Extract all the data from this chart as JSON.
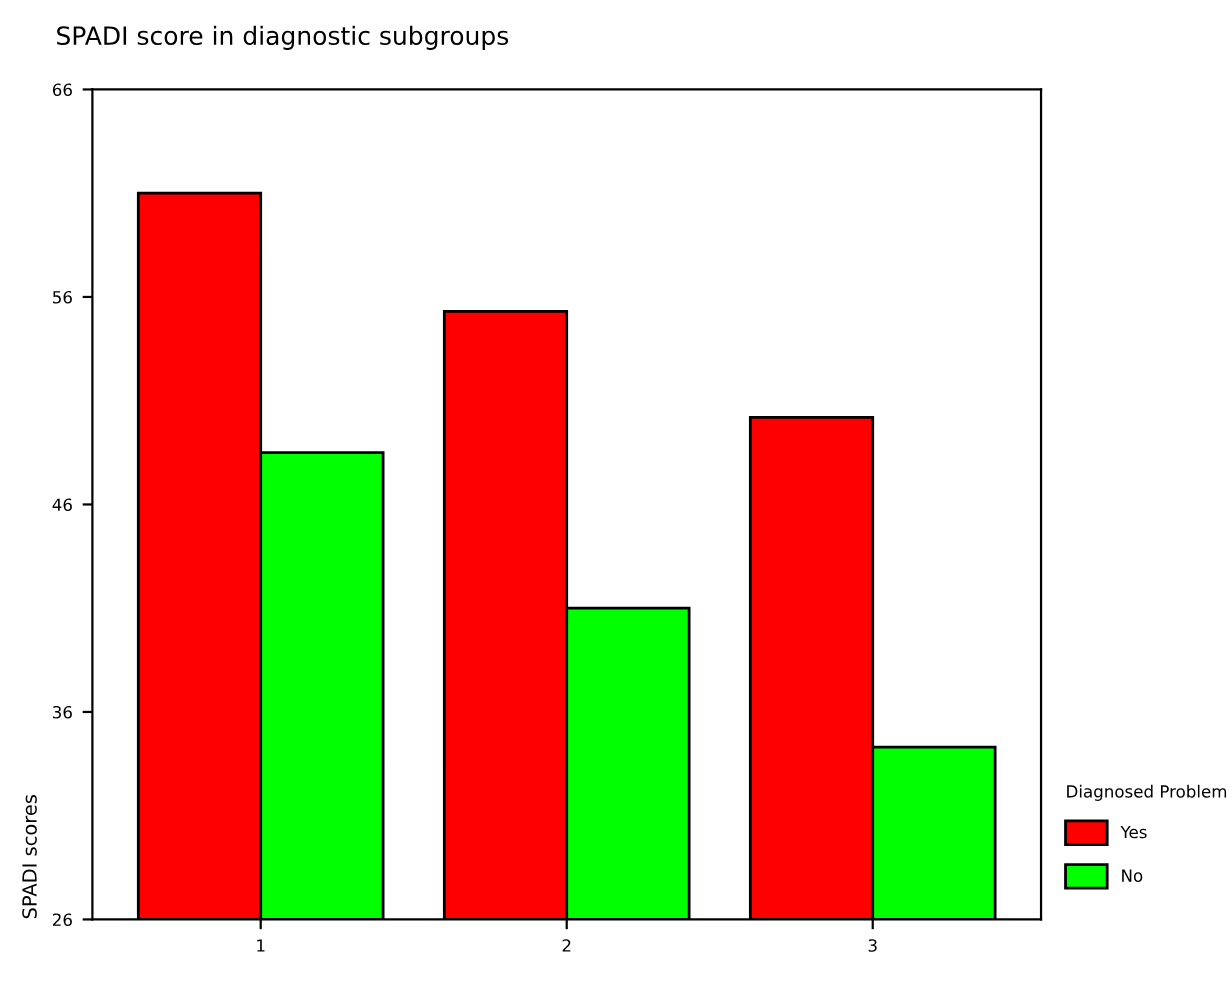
{
  "chart_data": {
    "type": "bar",
    "title": "SPADI score in diagnostic subgroups",
    "ylabel": "SPADI scores",
    "legend_title": "Diagnosed Problem",
    "categories": [
      "1",
      "2",
      "3"
    ],
    "series": [
      {
        "name": "Yes",
        "color": "#ff0000",
        "values": [
          61.0,
          55.3,
          50.2
        ]
      },
      {
        "name": "No",
        "color": "#00ff00",
        "values": [
          48.5,
          41.0,
          34.3
        ]
      }
    ],
    "ylim": [
      26,
      66
    ],
    "yticks": [
      26,
      36,
      46,
      56,
      66
    ],
    "grid": false,
    "legend": "right"
  }
}
